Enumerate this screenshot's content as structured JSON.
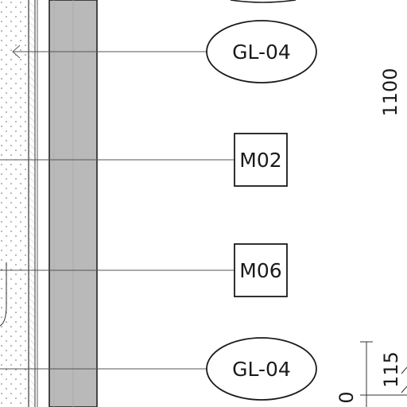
{
  "tags": {
    "top_ellipse": "GL-04",
    "box_upper": "M02",
    "box_lower": "M06",
    "bottom_ellipse": "GL-04"
  },
  "dimensions": {
    "height_main": "1100",
    "height_small": "115",
    "zero": "0"
  }
}
